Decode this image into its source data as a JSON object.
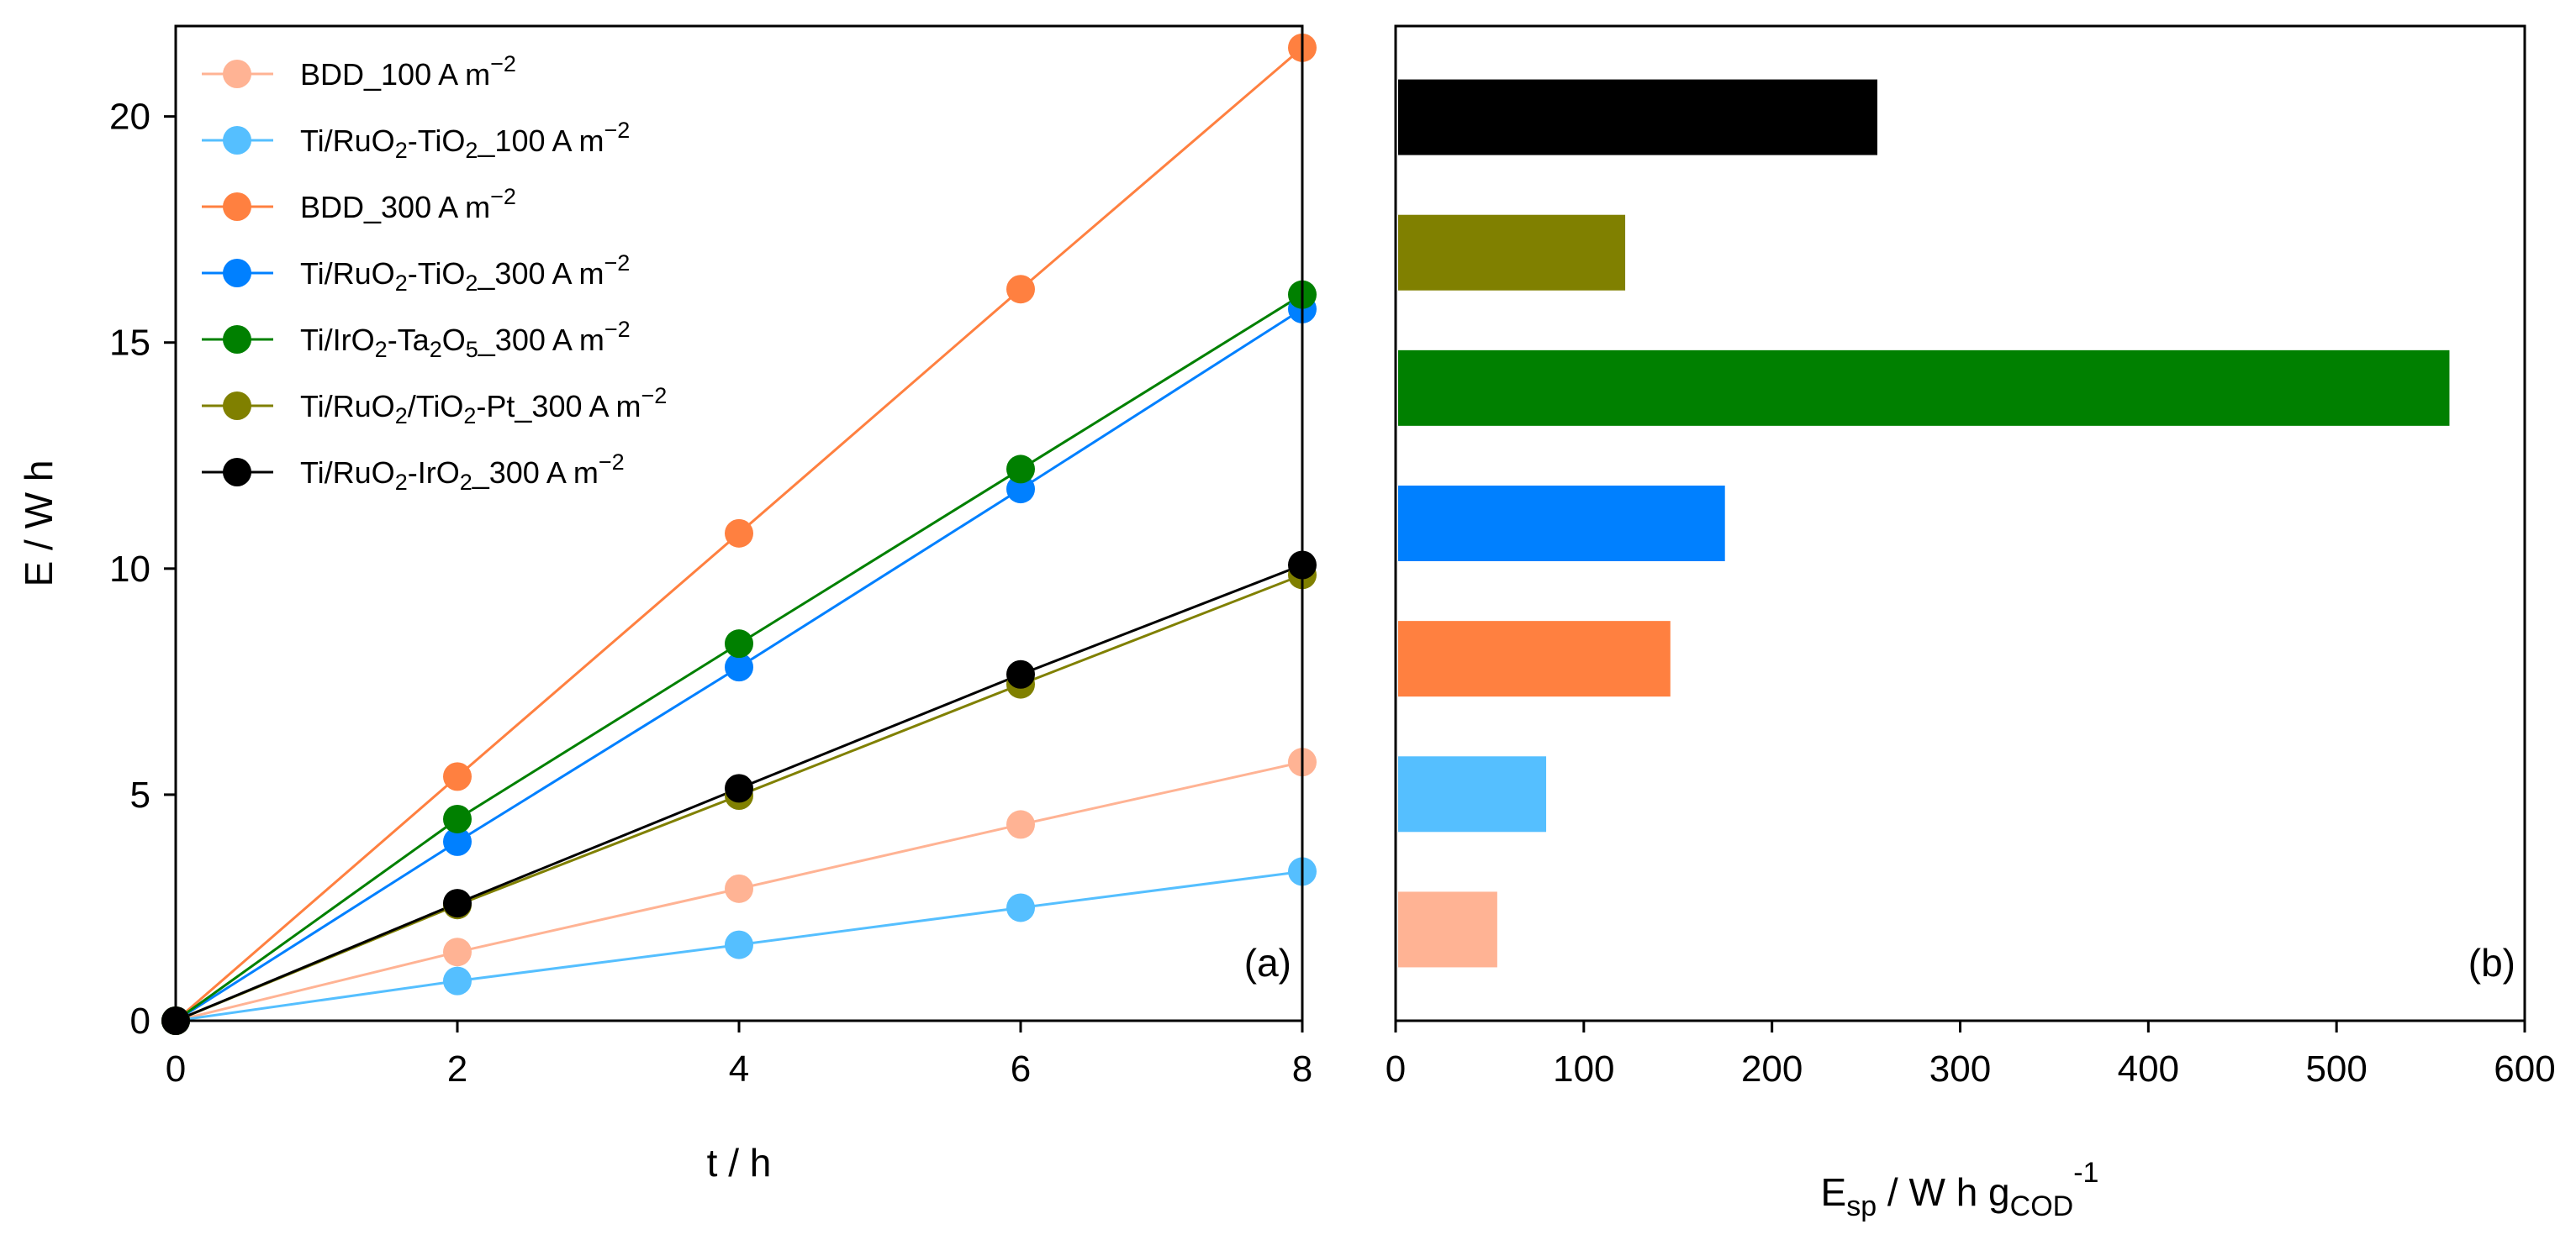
{
  "colors": {
    "bdd_100": "#ffb394",
    "ruo2_tio2_100": "#55bfff",
    "bdd_300": "#ff8040",
    "ruo2_tio2_300": "#0080ff",
    "iro2_ta2o5_300": "#008000",
    "ruo2_tio2_pt_300": "#808000",
    "ruo2_iro2_300": "#000000"
  },
  "chart_data": [
    {
      "panel_label": "(a)",
      "type": "line",
      "xlabel": "t / h",
      "ylabel": "E / W h",
      "xlim": [
        0,
        8
      ],
      "ylim": [
        0,
        22
      ],
      "xticks": [
        0,
        2,
        4,
        6,
        8
      ],
      "yticks": [
        0,
        5,
        10,
        15,
        20
      ],
      "grid": false,
      "legend_position": "top-left",
      "x": [
        0,
        2,
        4,
        6,
        8
      ],
      "series": [
        {
          "name": "BDD_100 A m",
          "sup": "−2",
          "color": "#ffb394",
          "values": [
            0,
            1.52,
            2.92,
            4.34,
            5.72
          ]
        },
        {
          "name": "Ti/RuO2-TiO2_100 A m",
          "sup": "−2",
          "color": "#55bfff",
          "values": [
            0,
            0.88,
            1.68,
            2.5,
            3.3
          ]
        },
        {
          "name": "BDD_300 A m",
          "sup": "−2",
          "color": "#ff8040",
          "values": [
            0,
            5.4,
            10.78,
            16.18,
            21.52
          ]
        },
        {
          "name": "Ti/RuO2-TiO2_300 A m",
          "sup": "−2",
          "color": "#0080ff",
          "values": [
            0,
            3.96,
            7.82,
            11.76,
            15.74
          ]
        },
        {
          "name": "Ti/IrO2-Ta2O5_300 A m",
          "sup": "−2",
          "color": "#008000",
          "values": [
            0,
            4.46,
            8.34,
            12.2,
            16.06
          ]
        },
        {
          "name": "Ti/RuO2/TiO2-Pt_300 A m",
          "sup": "−2",
          "color": "#808000",
          "values": [
            0,
            2.56,
            4.98,
            7.44,
            9.86
          ]
        },
        {
          "name": "Ti/RuO2-IrO2_300 A m",
          "sup": "−2",
          "color": "#000000",
          "values": [
            0,
            2.6,
            5.14,
            7.66,
            10.08
          ]
        }
      ]
    },
    {
      "panel_label": "(b)",
      "type": "bar",
      "orientation": "horizontal",
      "xlabel": "E",
      "xlabel_sub": "sp",
      "xlabel_mid": " / W h g",
      "xlabel_sub2": "COD",
      "xlabel_sup": "-1",
      "xlim": [
        0,
        600
      ],
      "xticks": [
        0,
        100,
        200,
        300,
        400,
        500,
        600
      ],
      "grid": false,
      "bars_bottom_to_top": [
        {
          "color": "#ffb394",
          "value": 54
        },
        {
          "color": "#55bfff",
          "value": 80
        },
        {
          "color": "#ff8040",
          "value": 146
        },
        {
          "color": "#0080ff",
          "value": 175
        },
        {
          "color": "#008000",
          "value": 560
        },
        {
          "color": "#808000",
          "value": 122
        },
        {
          "color": "#000000",
          "value": 256
        }
      ]
    }
  ]
}
